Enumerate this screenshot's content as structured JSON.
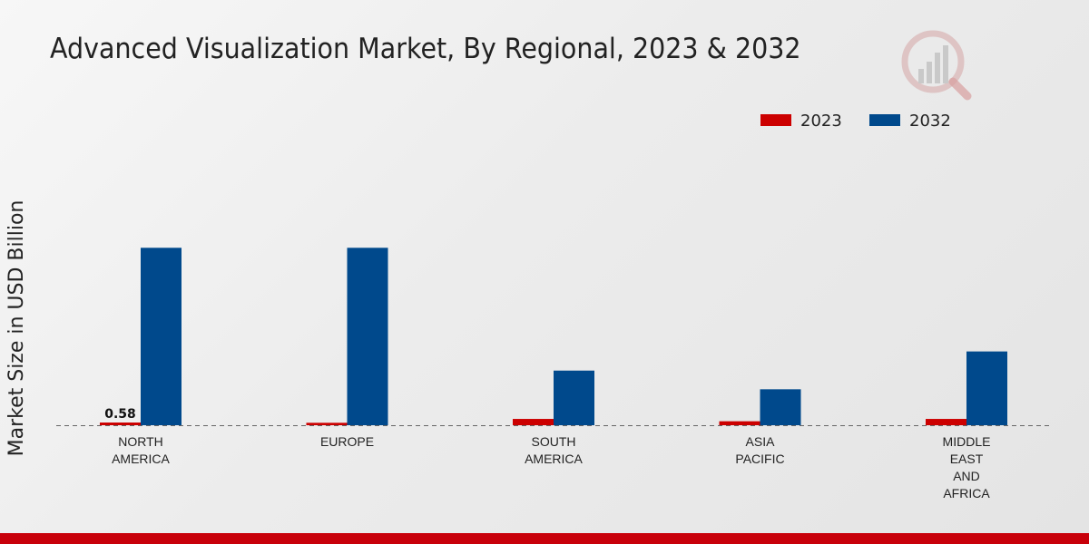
{
  "chart_data": {
    "type": "bar",
    "title": "Advanced Visualization Market, By Regional, 2023 & 2032",
    "ylabel": "Market Size in USD Billion",
    "xlabel": "",
    "categories": [
      [
        "NORTH",
        "AMERICA"
      ],
      [
        "EUROPE"
      ],
      [
        "SOUTH",
        "AMERICA"
      ],
      [
        "ASIA",
        "PACIFIC"
      ],
      [
        "MIDDLE",
        "EAST",
        "AND",
        "AFRICA"
      ]
    ],
    "series": [
      {
        "name": "2023",
        "color": "#cc0000",
        "values": [
          0.58,
          0.52,
          1.35,
          0.85,
          1.35
        ]
      },
      {
        "name": "2032",
        "color": "#00498c",
        "values": [
          38.0,
          38.0,
          11.7,
          7.7,
          15.8
        ]
      }
    ],
    "data_labels": [
      {
        "series": 0,
        "index": 0,
        "text": "0.58"
      }
    ],
    "ylim": [
      0,
      60
    ],
    "grid": false,
    "legend_position": "top-right"
  }
}
